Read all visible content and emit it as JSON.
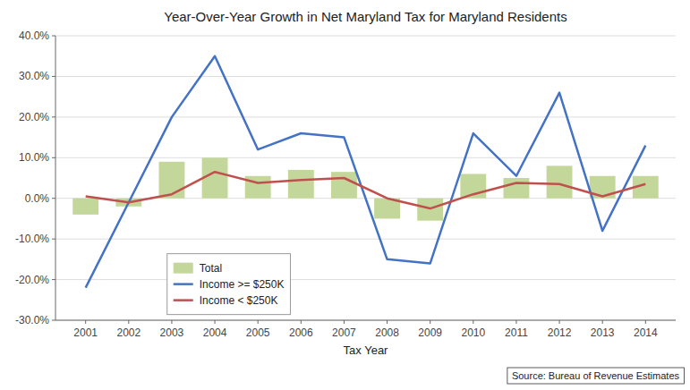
{
  "chart_data": {
    "type": "bar",
    "title": "Year-Over-Year Growth in Net Maryland Tax for Maryland Residents",
    "xlabel": "Tax Year",
    "annotations": [
      "Source: Bureau of Revenue Estimates"
    ],
    "x": [
      2001,
      2002,
      2003,
      2004,
      2005,
      2006,
      2007,
      2008,
      2009,
      2010,
      2011,
      2012,
      2013,
      2014
    ],
    "series": [
      {
        "name": "Total",
        "type": "bar",
        "color": "#C4D79B",
        "values": [
          -0.04,
          -0.02,
          0.09,
          0.1,
          0.055,
          0.07,
          0.065,
          -0.05,
          -0.055,
          0.06,
          0.05,
          0.08,
          0.055,
          0.055
        ]
      },
      {
        "name": "Income >= $250K",
        "type": "line",
        "color": "#4472C4",
        "values": [
          -0.22,
          -0.01,
          0.2,
          0.35,
          0.12,
          0.16,
          0.15,
          -0.15,
          -0.16,
          0.16,
          0.055,
          0.26,
          -0.08,
          0.13
        ]
      },
      {
        "name": "Income < $250K",
        "type": "line",
        "color": "#C0504D",
        "values": [
          0.005,
          -0.01,
          0.01,
          0.065,
          0.038,
          0.045,
          0.05,
          0.0,
          -0.025,
          0.01,
          0.038,
          0.035,
          0.005,
          0.035
        ]
      }
    ],
    "xlim": [
      2000.3,
      2014.7
    ],
    "xticks": [
      2001,
      2002,
      2003,
      2004,
      2005,
      2006,
      2007,
      2008,
      2009,
      2010,
      2011,
      2012,
      2013,
      2014
    ],
    "ylim": [
      -0.3,
      0.4
    ],
    "yticks": [
      {
        "value": -0.3,
        "label": "-30.0%"
      },
      {
        "value": -0.2,
        "label": "-20.0%"
      },
      {
        "value": -0.1,
        "label": "-10.0%"
      },
      {
        "value": 0.0,
        "label": "0.0%"
      },
      {
        "value": 0.1,
        "label": "10.0%"
      },
      {
        "value": 0.2,
        "label": "20.0%"
      },
      {
        "value": 0.3,
        "label": "30.0%"
      },
      {
        "value": 0.4,
        "label": "40.0%"
      }
    ],
    "grid": true,
    "legend": "lower left"
  }
}
